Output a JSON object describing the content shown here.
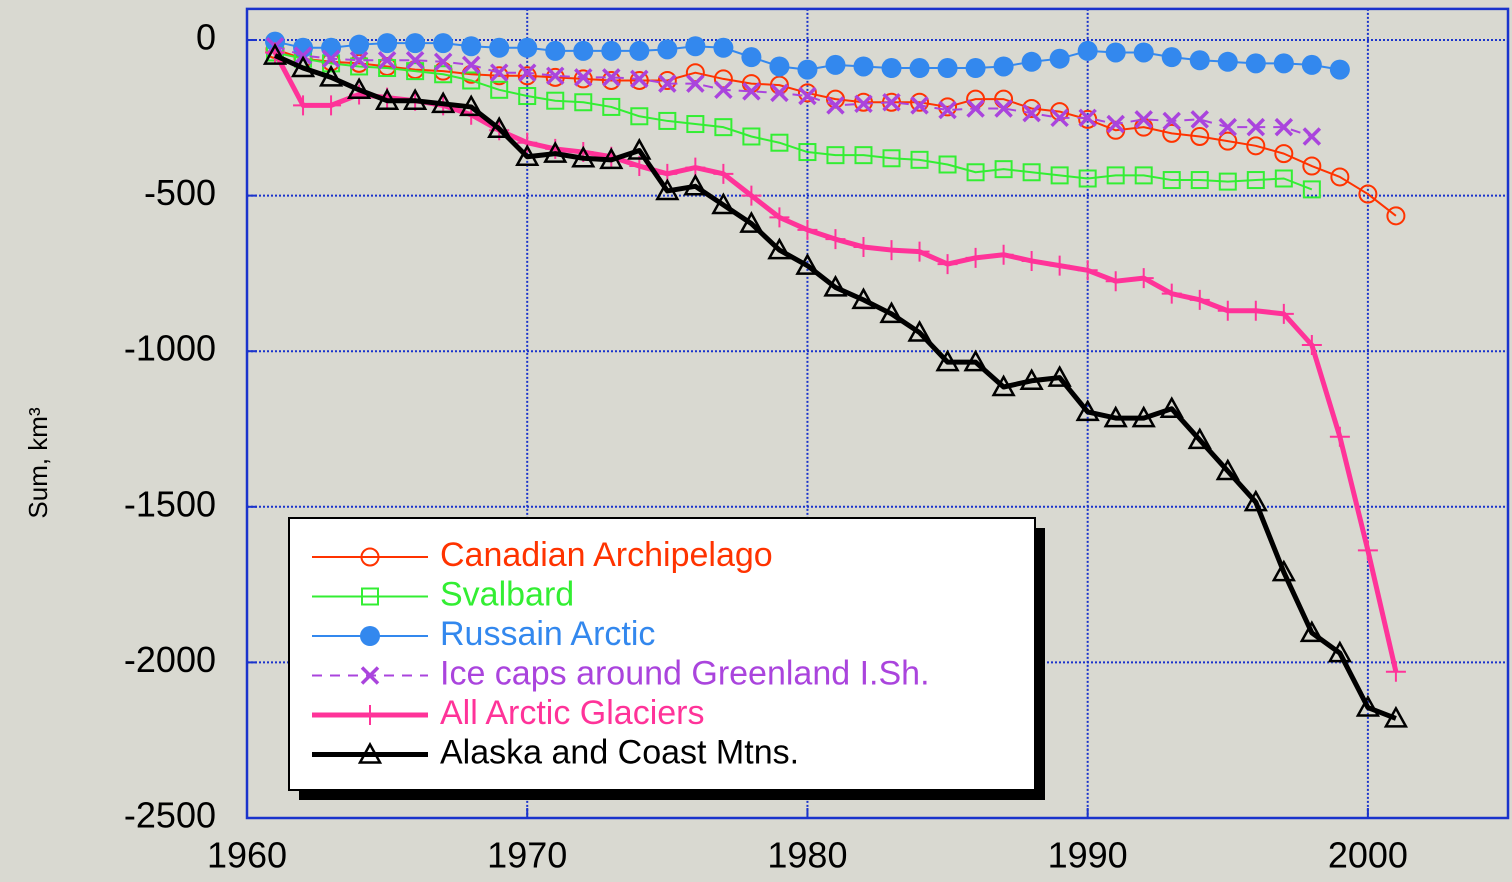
{
  "chart_data": {
    "type": "line",
    "y_label": "Sum,  km³",
    "x": [
      1961,
      1962,
      1963,
      1964,
      1965,
      1966,
      1967,
      1968,
      1969,
      1970,
      1971,
      1972,
      1973,
      1974,
      1975,
      1976,
      1977,
      1978,
      1979,
      1980,
      1981,
      1982,
      1983,
      1984,
      1985,
      1986,
      1987,
      1988,
      1989,
      1990,
      1991,
      1992,
      1993,
      1994,
      1995,
      1996,
      1997,
      1998,
      1999,
      2000,
      2001
    ],
    "xlim": [
      1960,
      2005
    ],
    "xticks": [
      1960,
      1970,
      1980,
      1990,
      2000
    ],
    "ylim": [
      -2500,
      100
    ],
    "yticks": [
      0,
      -500,
      -1000,
      -1500,
      -2000,
      -2500
    ],
    "grid": true,
    "legend": "lower left",
    "series": [
      {
        "name": "Canadian Archipelago",
        "color": "#ff3300",
        "marker": "circle-open",
        "line_style": "solid",
        "values": [
          -30,
          -60,
          -70,
          -75,
          -85,
          -95,
          -100,
          -110,
          -115,
          -115,
          -120,
          -125,
          -130,
          -130,
          -130,
          -105,
          -125,
          -140,
          -145,
          -170,
          -190,
          -200,
          -200,
          -200,
          -215,
          -190,
          -190,
          -220,
          -230,
          -255,
          -290,
          -280,
          -300,
          -310,
          -325,
          -340,
          -365,
          -405,
          -440,
          -495,
          -565
        ]
      },
      {
        "name": "Svalbard",
        "color": "#33ee33",
        "marker": "square-open",
        "line_style": "solid",
        "values": [
          -40,
          -60,
          -75,
          -85,
          -90,
          -100,
          -110,
          -130,
          -160,
          -180,
          -195,
          -200,
          -215,
          -245,
          -260,
          -270,
          -280,
          -310,
          -330,
          -360,
          -370,
          -370,
          -380,
          -385,
          -400,
          -425,
          -415,
          -425,
          -435,
          -445,
          -435,
          -435,
          -450,
          -450,
          -455,
          -450,
          -445,
          -480,
          null,
          null,
          null
        ]
      },
      {
        "name": "Russain Arctic",
        "color": "#3388ee",
        "marker": "circle-filled",
        "line_style": "solid",
        "values": [
          -5,
          -25,
          -25,
          -15,
          -10,
          -10,
          -10,
          -20,
          -25,
          -25,
          -35,
          -35,
          -35,
          -35,
          -30,
          -20,
          -25,
          -55,
          -85,
          -95,
          -80,
          -85,
          -90,
          -90,
          -90,
          -90,
          -85,
          -70,
          -60,
          -35,
          -40,
          -40,
          -55,
          -65,
          -70,
          -75,
          -75,
          -80,
          -95,
          null,
          null
        ]
      },
      {
        "name": "Ice caps around Greenland I.Sh.",
        "color": "#aa44dd",
        "marker": "x",
        "line_style": "dashed",
        "values": [
          -20,
          -50,
          -60,
          -65,
          -65,
          -65,
          -70,
          -80,
          -105,
          -105,
          -115,
          -120,
          -120,
          -125,
          -140,
          -140,
          -160,
          -165,
          -170,
          -180,
          -210,
          -205,
          -200,
          -210,
          -225,
          -220,
          -220,
          -235,
          -250,
          -250,
          -270,
          -255,
          -260,
          -255,
          -280,
          -280,
          -280,
          -310,
          null,
          null,
          null
        ]
      },
      {
        "name": "All Arctic Glaciers",
        "color": "#ff3399",
        "marker": "plus",
        "line_style": "thick",
        "values": [
          -40,
          -210,
          -210,
          -175,
          -185,
          -195,
          -210,
          -240,
          -290,
          -330,
          -350,
          -360,
          -375,
          -405,
          -430,
          -410,
          -430,
          -500,
          -570,
          -610,
          -640,
          -665,
          -675,
          -680,
          -720,
          -700,
          -690,
          -710,
          -725,
          -740,
          -775,
          -765,
          -815,
          -835,
          -870,
          -870,
          -880,
          -980,
          -1275,
          -1640,
          -2030
        ]
      },
      {
        "name": "Alaska and Coast Mtns.",
        "color": "#000000",
        "marker": "triangle-open",
        "line_style": "thick",
        "values": [
          -50,
          -90,
          -120,
          -160,
          -195,
          -195,
          -205,
          -215,
          -285,
          -375,
          -365,
          -380,
          -385,
          -355,
          -485,
          -470,
          -530,
          -590,
          -675,
          -725,
          -795,
          -835,
          -880,
          -940,
          -1035,
          -1035,
          -1115,
          -1095,
          -1085,
          -1195,
          -1215,
          -1215,
          -1185,
          -1285,
          -1385,
          -1485,
          -1710,
          -1905,
          -1970,
          -2145,
          -2180
        ]
      }
    ]
  }
}
